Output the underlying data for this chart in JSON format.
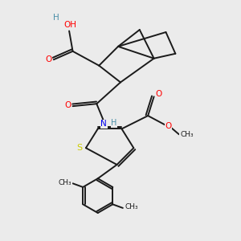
{
  "bg_color": "#ebebeb",
  "atom_colors": {
    "O": "#ff0000",
    "N": "#0000ee",
    "S": "#cccc00",
    "H_col": "#4a8fa8"
  },
  "bond_color": "#1a1a1a",
  "bond_width": 1.4,
  "fig_size": [
    3.0,
    3.0
  ],
  "dpi": 100,
  "xlim": [
    0,
    10
  ],
  "ylim": [
    0,
    10
  ]
}
